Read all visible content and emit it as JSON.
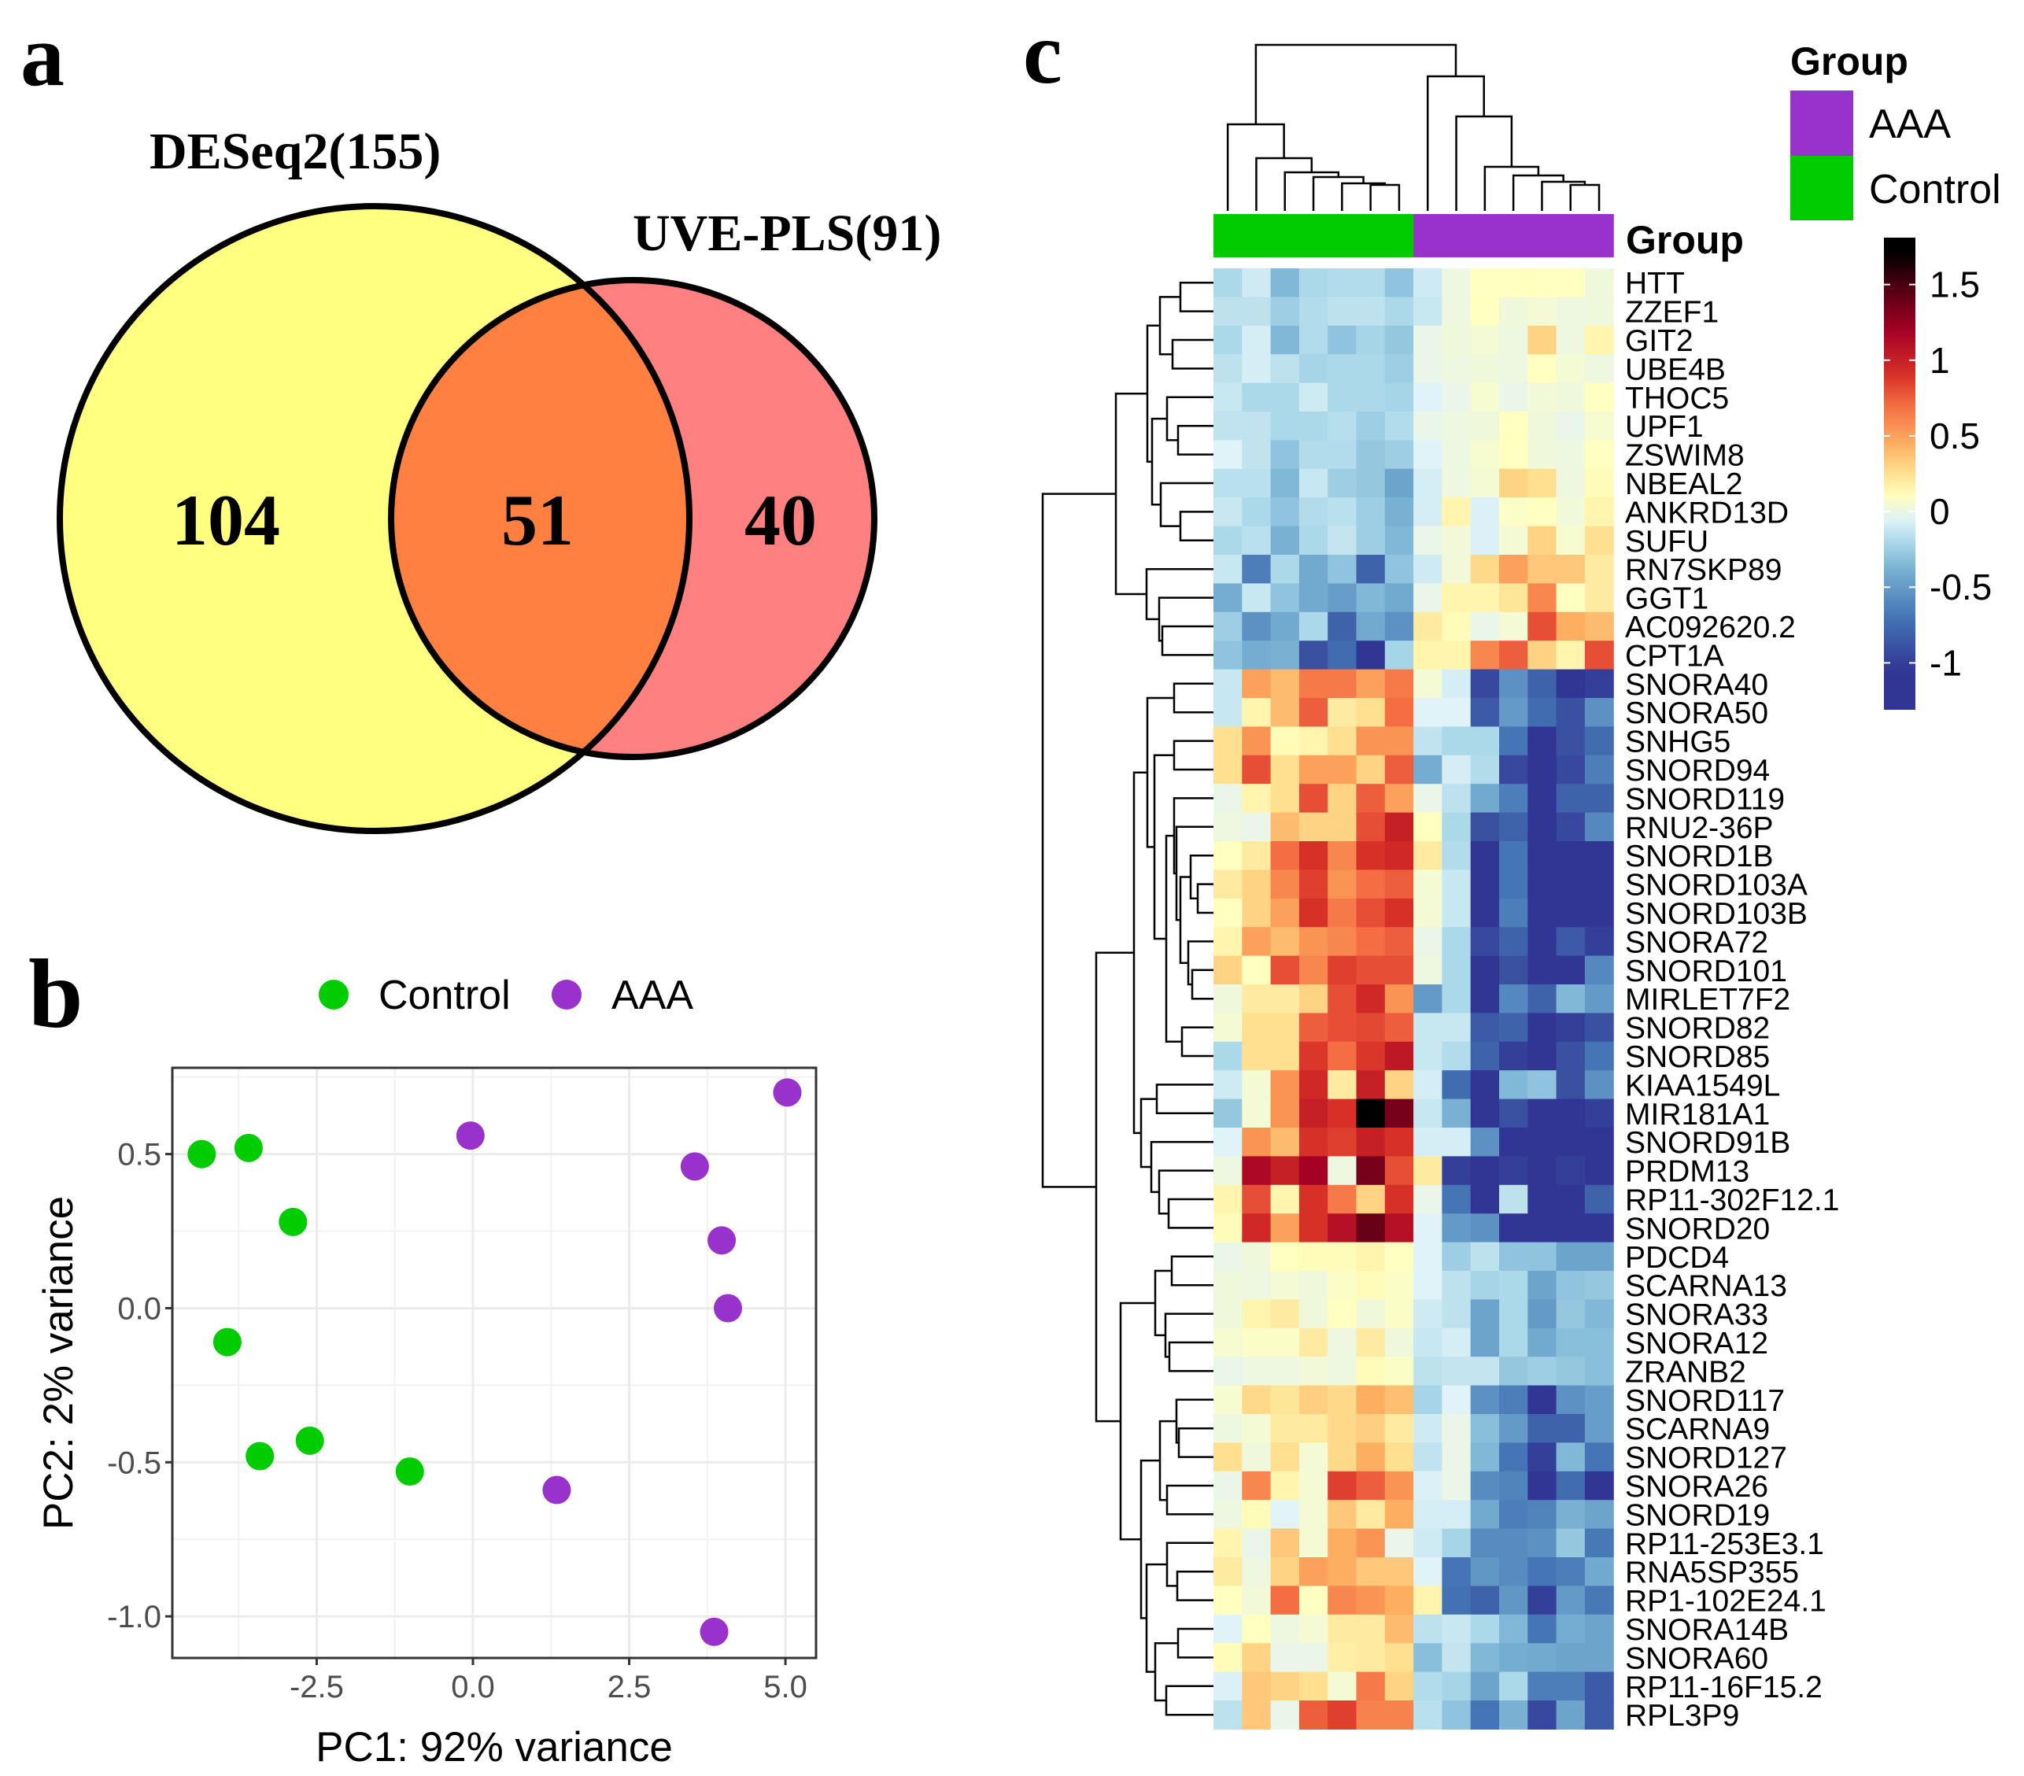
{
  "panel_labels": {
    "a": "a",
    "b": "b",
    "c": "c"
  },
  "chart_data": [
    {
      "type": "venn",
      "sets": [
        {
          "label": "DESeq2(155)",
          "size": 155,
          "color": "#ffff80"
        },
        {
          "label": "UVE-PLS(91)",
          "size": 91,
          "color": "#ff8080"
        }
      ],
      "regions": {
        "only_deseq2": "104",
        "overlap": "51",
        "only_uvepls": "40"
      },
      "overlap_color": "#ff8040"
    },
    {
      "type": "scatter",
      "xlabel": "PC1: 92% variance",
      "ylabel": "PC2: 2% variance",
      "xlim": [
        -4.81,
        5.49
      ],
      "ylim": [
        -1.135,
        0.78
      ],
      "xticks": [
        {
          "value": -2.5,
          "label": "-2.5"
        },
        {
          "value": 0,
          "label": "0.0"
        },
        {
          "value": 2.5,
          "label": "2.5"
        },
        {
          "value": 5,
          "label": "5.0"
        }
      ],
      "yticks": [
        {
          "value": 0.5,
          "label": "0.5"
        },
        {
          "value": 0,
          "label": "0.0"
        },
        {
          "value": -0.5,
          "label": "-0.5"
        },
        {
          "value": -1,
          "label": "-1.0"
        }
      ],
      "grid": true,
      "legend_position": "top",
      "series": [
        {
          "name": "Control",
          "color": "#00cc00",
          "points": [
            [
              -4.34,
              0.5
            ],
            [
              -3.59,
              0.52
            ],
            [
              -2.88,
              0.28
            ],
            [
              -3.93,
              -0.11
            ],
            [
              -3.41,
              -0.48
            ],
            [
              -2.61,
              -0.43
            ],
            [
              -1.01,
              -0.53
            ]
          ]
        },
        {
          "name": "AAA",
          "color": "#9932cc",
          "points": [
            [
              -0.04,
              0.56
            ],
            [
              5.03,
              0.7
            ],
            [
              3.55,
              0.46
            ],
            [
              3.98,
              0.22
            ],
            [
              4.08,
              0.0
            ],
            [
              1.34,
              -0.59
            ],
            [
              3.86,
              -1.05
            ]
          ]
        }
      ]
    },
    {
      "type": "heatmap",
      "annotation_label": "Group",
      "legend_title": "Group",
      "legend": [
        {
          "name": "AAA",
          "color": "#9932cc"
        },
        {
          "name": "Control",
          "color": "#00cc00"
        }
      ],
      "column_groups": [
        "Control",
        "Control",
        "Control",
        "Control",
        "Control",
        "Control",
        "Control",
        "AAA",
        "AAA",
        "AAA",
        "AAA",
        "AAA",
        "AAA",
        "AAA"
      ],
      "colorbar": {
        "range": [
          -1.31,
          1.81
        ],
        "ticks": [
          {
            "value": 1.5,
            "label": "1.5"
          },
          {
            "value": 1,
            "label": "1"
          },
          {
            "value": 0.5,
            "label": "0.5"
          },
          {
            "value": 0,
            "label": "0"
          },
          {
            "value": -0.5,
            "label": "-0.5"
          },
          {
            "value": -1,
            "label": "-1"
          }
        ]
      },
      "rows": [
        "HTT",
        "ZZEF1",
        "GIT2",
        "UBE4B",
        "THOC5",
        "UPF1",
        "ZSWIM8",
        "NBEAL2",
        "ANKRD13D",
        "SUFU",
        "RN7SKP89",
        "GGT1",
        "AC092620.2",
        "CPT1A",
        "SNORA40",
        "SNORA50",
        "SNHG5",
        "SNORD94",
        "SNORD119",
        "RNU2-36P",
        "SNORD1B",
        "SNORD103A",
        "SNORD103B",
        "SNORA72",
        "SNORD101",
        "MIRLET7F2",
        "SNORD82",
        "SNORD85",
        "KIAA1549L",
        "MIR181A1",
        "SNORD91B",
        "PRDM13",
        "RP11-302F12.1",
        "SNORD20",
        "PDCD4",
        "SCARNA13",
        "SNORA33",
        "SNORA12",
        "ZRANB2",
        "SNORD117",
        "SCARNA9",
        "SNORD127",
        "SNORA26",
        "SNORD19",
        "RP11-253E3.1",
        "RNA5SP355",
        "RP1-102E24.1",
        "SNORA14B",
        "SNORA60",
        "RP11-16F15.2",
        "RPL3P9"
      ],
      "values": [
        [
          -0.2,
          -0.1,
          -0.35,
          -0.2,
          -0.18,
          -0.18,
          -0.3,
          -0.1,
          0.02,
          0.1,
          0.1,
          0.1,
          0.1,
          0.03
        ],
        [
          -0.15,
          -0.15,
          -0.25,
          -0.18,
          -0.15,
          -0.15,
          -0.2,
          -0.12,
          0.02,
          0.1,
          0.03,
          0.05,
          0.02,
          0.03
        ],
        [
          -0.2,
          -0.08,
          -0.35,
          -0.18,
          -0.3,
          -0.22,
          -0.28,
          0.0,
          0.03,
          0.05,
          0.02,
          0.3,
          0.02,
          0.15
        ],
        [
          -0.15,
          -0.08,
          -0.15,
          -0.22,
          -0.2,
          -0.2,
          -0.25,
          0.0,
          0.02,
          0.03,
          0.02,
          0.1,
          0.05,
          0.02
        ],
        [
          -0.12,
          -0.2,
          -0.2,
          -0.1,
          -0.2,
          -0.2,
          -0.22,
          -0.05,
          0.0,
          0.06,
          0.0,
          0.04,
          0.03,
          0.1
        ],
        [
          -0.14,
          -0.14,
          -0.2,
          -0.2,
          -0.17,
          -0.25,
          -0.18,
          0.0,
          0.02,
          0.03,
          0.1,
          0.03,
          0.0,
          0.06
        ],
        [
          -0.05,
          -0.14,
          -0.3,
          -0.18,
          -0.18,
          -0.28,
          -0.25,
          -0.05,
          0.02,
          0.06,
          0.1,
          0.03,
          0.02,
          0.1
        ],
        [
          -0.16,
          -0.16,
          -0.35,
          -0.12,
          -0.25,
          -0.28,
          -0.45,
          -0.08,
          0.02,
          0.05,
          0.3,
          0.25,
          0.02,
          0.12
        ],
        [
          -0.12,
          -0.2,
          -0.3,
          -0.18,
          -0.16,
          -0.25,
          -0.38,
          -0.08,
          0.15,
          -0.06,
          0.08,
          0.1,
          0.04,
          0.15
        ],
        [
          -0.2,
          -0.16,
          -0.38,
          -0.2,
          -0.13,
          -0.25,
          -0.35,
          0.0,
          0.04,
          -0.06,
          0.05,
          0.3,
          0.06,
          0.25
        ],
        [
          -0.12,
          -0.65,
          -0.2,
          -0.42,
          -0.3,
          -0.8,
          -0.3,
          -0.1,
          0.04,
          0.28,
          0.5,
          0.35,
          0.35,
          0.2
        ],
        [
          -0.4,
          -0.12,
          -0.3,
          -0.42,
          -0.48,
          -0.35,
          -0.42,
          0.0,
          0.15,
          0.15,
          0.22,
          0.6,
          0.1,
          0.2
        ],
        [
          -0.25,
          -0.55,
          -0.42,
          -0.2,
          -0.8,
          -0.42,
          -0.55,
          0.2,
          0.12,
          0.0,
          0.05,
          0.8,
          0.45,
          0.4
        ],
        [
          -0.3,
          -0.4,
          -0.38,
          -0.9,
          -0.75,
          -1.2,
          -0.22,
          0.15,
          0.15,
          0.6,
          0.75,
          0.3,
          0.15,
          0.8
        ],
        [
          -0.12,
          0.5,
          0.4,
          0.65,
          0.65,
          0.5,
          0.65,
          0.05,
          -0.08,
          -0.95,
          -0.55,
          -0.8,
          -1.2,
          -1.0
        ],
        [
          -0.12,
          0.15,
          0.4,
          0.75,
          0.2,
          0.25,
          0.7,
          -0.05,
          -0.05,
          -0.85,
          -0.5,
          -0.75,
          -0.9,
          -0.55
        ],
        [
          0.25,
          0.55,
          0.12,
          0.15,
          0.25,
          0.55,
          0.55,
          -0.14,
          -0.2,
          -0.2,
          -0.7,
          -1.1,
          -0.9,
          -0.75
        ],
        [
          0.25,
          0.8,
          0.25,
          0.5,
          0.5,
          0.3,
          0.75,
          -0.4,
          -0.08,
          -0.18,
          -0.95,
          -1.2,
          -0.95,
          -0.65
        ],
        [
          0.0,
          0.15,
          0.25,
          0.8,
          0.3,
          0.75,
          0.5,
          0.0,
          -0.15,
          -0.42,
          -0.65,
          -1.2,
          -0.8,
          -0.8
        ],
        [
          0.02,
          0.0,
          0.4,
          0.3,
          0.3,
          0.8,
          1.0,
          0.1,
          -0.2,
          -0.9,
          -0.8,
          -1.2,
          -0.95,
          -0.6
        ],
        [
          0.1,
          0.2,
          0.7,
          0.9,
          0.6,
          0.9,
          0.95,
          0.2,
          -0.18,
          -1.2,
          -0.7,
          -1.2,
          -1.2,
          -1.2
        ],
        [
          0.2,
          0.3,
          0.6,
          0.85,
          0.55,
          0.7,
          0.75,
          0.05,
          -0.12,
          -1.2,
          -0.7,
          -1.2,
          -1.2,
          -1.1
        ],
        [
          0.1,
          0.3,
          0.5,
          0.9,
          0.65,
          0.8,
          0.9,
          0.05,
          -0.12,
          -1.2,
          -0.65,
          -1.2,
          -1.2,
          -1.2
        ],
        [
          0.15,
          0.5,
          0.4,
          0.55,
          0.6,
          0.7,
          0.75,
          0.0,
          -0.2,
          -0.95,
          -0.8,
          -1.2,
          -0.85,
          -1.0
        ],
        [
          0.3,
          0.1,
          0.8,
          0.6,
          0.85,
          0.8,
          0.8,
          0.02,
          -0.2,
          -1.2,
          -0.9,
          -1.2,
          -1.1,
          -0.6
        ],
        [
          0.03,
          0.2,
          0.2,
          0.3,
          0.8,
          0.95,
          0.55,
          -0.5,
          -0.2,
          -1.2,
          -0.6,
          -0.8,
          -0.35,
          -0.5
        ],
        [
          0.05,
          0.25,
          0.25,
          0.75,
          0.8,
          0.82,
          0.75,
          -0.12,
          -0.12,
          -0.85,
          -0.8,
          -1.2,
          -1.0,
          -0.9
        ],
        [
          -0.2,
          0.25,
          0.25,
          0.88,
          0.7,
          0.88,
          1.05,
          -0.12,
          -0.18,
          -0.8,
          -1.0,
          -1.2,
          -0.9,
          -0.7
        ],
        [
          -0.1,
          0.05,
          0.55,
          0.95,
          0.2,
          1.0,
          0.3,
          -0.08,
          -0.75,
          -1.2,
          -0.35,
          -0.3,
          -0.9,
          -0.55
        ],
        [
          -0.28,
          0.05,
          0.55,
          1.0,
          0.9,
          1.8,
          1.35,
          -0.12,
          -0.38,
          -1.2,
          -0.9,
          -1.2,
          -1.2,
          -1.0
        ],
        [
          -0.05,
          0.55,
          0.4,
          0.9,
          0.85,
          1.0,
          0.9,
          -0.08,
          -0.08,
          -0.55,
          -1.2,
          -1.2,
          -1.2,
          -1.2
        ],
        [
          0.02,
          1.15,
          1.0,
          1.2,
          0.02,
          1.35,
          0.8,
          0.2,
          -1.0,
          -1.2,
          -1.0,
          -1.2,
          -1.0,
          -1.2
        ],
        [
          0.15,
          0.8,
          0.15,
          0.9,
          0.65,
          0.3,
          0.9,
          0.0,
          -0.7,
          -1.2,
          -0.15,
          -1.2,
          -1.2,
          -0.8
        ],
        [
          0.12,
          0.95,
          0.5,
          0.9,
          1.1,
          1.4,
          1.1,
          -0.05,
          -0.5,
          -0.55,
          -1.2,
          -1.2,
          -1.2,
          -1.2
        ],
        [
          0.0,
          0.03,
          0.1,
          0.12,
          0.12,
          0.15,
          0.1,
          -0.05,
          -0.25,
          -0.15,
          -0.3,
          -0.3,
          -0.45,
          -0.45
        ],
        [
          0.03,
          0.02,
          0.05,
          0.03,
          0.08,
          0.12,
          0.08,
          -0.05,
          -0.15,
          -0.22,
          -0.2,
          -0.45,
          -0.3,
          -0.28
        ],
        [
          0.03,
          0.15,
          0.2,
          0.03,
          0.1,
          0.03,
          0.08,
          -0.1,
          -0.15,
          -0.45,
          -0.2,
          -0.5,
          -0.28,
          -0.35
        ],
        [
          0.06,
          0.08,
          0.08,
          0.2,
          0.02,
          0.2,
          0.03,
          -0.12,
          -0.08,
          -0.45,
          -0.2,
          -0.42,
          -0.32,
          -0.32
        ],
        [
          0.0,
          0.02,
          0.02,
          0.04,
          0.02,
          0.12,
          0.08,
          -0.15,
          -0.13,
          -0.13,
          -0.28,
          -0.25,
          -0.28,
          -0.32
        ],
        [
          0.06,
          0.28,
          0.22,
          0.32,
          0.28,
          0.45,
          0.38,
          -0.22,
          -0.05,
          -0.55,
          -0.65,
          -1.2,
          -0.55,
          -0.48
        ],
        [
          0.02,
          0.05,
          0.2,
          0.2,
          0.28,
          0.32,
          0.2,
          -0.1,
          0.0,
          -0.32,
          -0.5,
          -0.8,
          -0.8,
          -0.48
        ],
        [
          0.25,
          0.03,
          0.25,
          0.05,
          0.28,
          0.45,
          0.25,
          -0.14,
          0.0,
          -0.35,
          -0.7,
          -1.0,
          -0.35,
          -0.7
        ],
        [
          0.0,
          0.6,
          0.15,
          0.05,
          0.85,
          0.75,
          0.55,
          -0.06,
          0.0,
          -0.58,
          -0.62,
          -1.2,
          -0.75,
          -1.05
        ],
        [
          0.02,
          0.12,
          -0.04,
          0.05,
          0.35,
          0.2,
          0.45,
          -0.08,
          -0.08,
          -0.42,
          -0.65,
          -0.62,
          -0.38,
          -0.45
        ],
        [
          0.15,
          0.0,
          0.35,
          0.05,
          0.45,
          0.55,
          0.0,
          -0.1,
          -0.22,
          -0.58,
          -0.58,
          -0.55,
          -0.28,
          -0.68
        ],
        [
          0.2,
          0.02,
          0.3,
          0.5,
          0.45,
          0.35,
          0.35,
          -0.05,
          -0.7,
          -0.52,
          -0.58,
          -0.7,
          -0.65,
          -0.42
        ],
        [
          0.1,
          0.04,
          0.7,
          0.1,
          0.6,
          0.55,
          0.45,
          0.15,
          -0.72,
          -0.8,
          -0.52,
          -1.0,
          -0.5,
          -0.68
        ],
        [
          -0.05,
          0.1,
          0.02,
          0.05,
          0.2,
          0.2,
          0.4,
          -0.15,
          -0.12,
          -0.2,
          -0.35,
          -0.7,
          -0.4,
          -0.45
        ],
        [
          0.12,
          0.3,
          0.0,
          0.0,
          0.18,
          0.2,
          0.25,
          -0.32,
          -0.13,
          -0.35,
          -0.4,
          -0.42,
          -0.45,
          -0.45
        ],
        [
          -0.06,
          0.35,
          0.3,
          0.25,
          0.05,
          0.65,
          0.3,
          -0.18,
          -0.22,
          -0.45,
          -0.2,
          -0.65,
          -0.65,
          -0.85
        ],
        [
          -0.15,
          0.35,
          0.0,
          0.75,
          0.85,
          0.62,
          0.62,
          -0.16,
          -0.3,
          -0.7,
          -0.38,
          -0.95,
          -0.45,
          -0.85
        ]
      ]
    }
  ]
}
